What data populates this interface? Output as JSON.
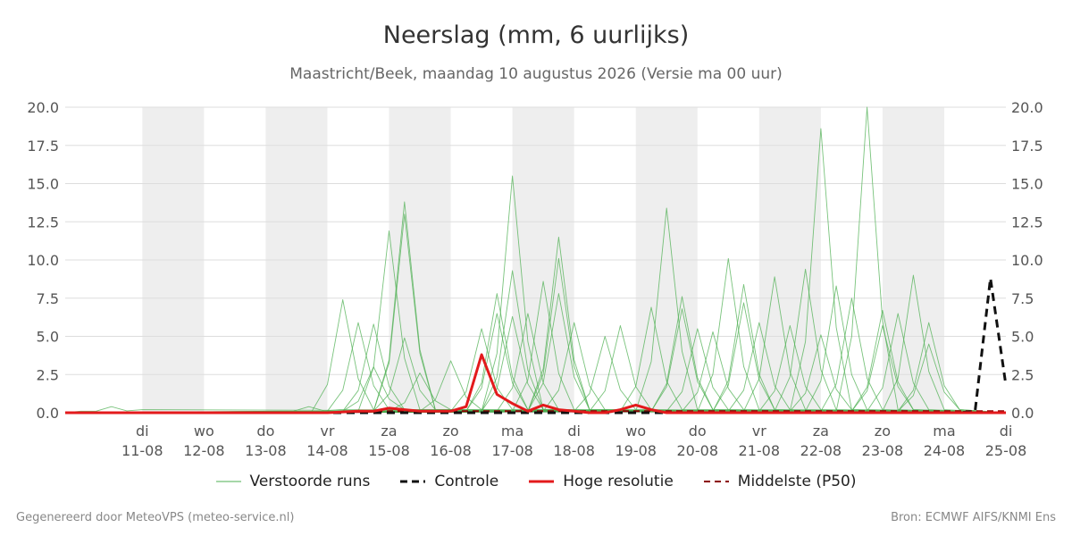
{
  "header": {
    "title": "Neerslag (mm, 6 uurlijks)",
    "subtitle": "Maastricht/Beek, maandag 10 augustus 2026 (Versie ma 00 uur)"
  },
  "footer": {
    "left": "Gegenereerd door MeteoVPS (meteo-service.nl)",
    "right": "Bron: ECMWF AIFS/KNMI Ens"
  },
  "chart_data": {
    "type": "line",
    "title": "Neerslag (mm, 6 uurlijks)",
    "subtitle": "Maastricht/Beek, maandag 10 augustus 2026 (Versie ma 00 uur)",
    "xlabel": "",
    "ylabel": "",
    "ylim": [
      0,
      20
    ],
    "xlim": [
      -0.25,
      15.0
    ],
    "x_unit": "days since 10-08-2026 00 uur",
    "yticks": [
      "0.0",
      "2.5",
      "5.0",
      "7.5",
      "10.0",
      "12.5",
      "15.0",
      "17.5",
      "20.0"
    ],
    "yticks_both_sides": true,
    "grid": true,
    "legend_placement": "bottom",
    "x_ticks": [
      {
        "day": "di",
        "date": "11-08"
      },
      {
        "day": "wo",
        "date": "12-08"
      },
      {
        "day": "do",
        "date": "13-08"
      },
      {
        "day": "vr",
        "date": "14-08"
      },
      {
        "day": "za",
        "date": "15-08"
      },
      {
        "day": "zo",
        "date": "16-08"
      },
      {
        "day": "ma",
        "date": "17-08"
      },
      {
        "day": "di",
        "date": "18-08"
      },
      {
        "day": "wo",
        "date": "19-08"
      },
      {
        "day": "do",
        "date": "20-08"
      },
      {
        "day": "vr",
        "date": "21-08"
      },
      {
        "day": "za",
        "date": "22-08"
      },
      {
        "day": "zo",
        "date": "23-08"
      },
      {
        "day": "ma",
        "date": "24-08"
      },
      {
        "day": "di",
        "date": "25-08"
      }
    ],
    "shaded_days": [
      [
        1,
        2
      ],
      [
        3,
        4
      ],
      [
        5,
        6
      ],
      [
        7,
        8
      ],
      [
        9,
        10
      ],
      [
        11,
        12
      ],
      [
        13,
        14
      ]
    ],
    "legend": {
      "members": "Verstoorde runs",
      "control": "Controle",
      "hires": "Hoge resolutie",
      "median": "Middelste (P50)"
    },
    "colors": {
      "members": "#4caf50",
      "control": "#111111",
      "hires": "#e31a1c",
      "median": "#8b0000",
      "shade": "#eeeeee",
      "grid": "#dddddd"
    },
    "series": [
      {
        "name": "Hoge resolutie",
        "style": "red-solid",
        "points": [
          [
            -0.25,
            0
          ],
          [
            0,
            0
          ],
          [
            1,
            0
          ],
          [
            2,
            0
          ],
          [
            3,
            0
          ],
          [
            4,
            0
          ],
          [
            4.5,
            0.1
          ],
          [
            4.75,
            0.1
          ],
          [
            5,
            0.3
          ],
          [
            5.25,
            0.2
          ],
          [
            5.5,
            0.1
          ],
          [
            5.75,
            0.1
          ],
          [
            6,
            0.1
          ],
          [
            6.25,
            0.4
          ],
          [
            6.5,
            3.8
          ],
          [
            6.75,
            1.2
          ],
          [
            7,
            0.6
          ],
          [
            7.25,
            0.1
          ],
          [
            7.5,
            0.5
          ],
          [
            7.75,
            0.2
          ],
          [
            8,
            0.1
          ],
          [
            8.25,
            0
          ],
          [
            8.5,
            0
          ],
          [
            8.75,
            0.2
          ],
          [
            9,
            0.5
          ],
          [
            9.25,
            0.2
          ],
          [
            9.5,
            0
          ],
          [
            10,
            0
          ],
          [
            11,
            0
          ],
          [
            12,
            0
          ],
          [
            13,
            0
          ],
          [
            14,
            0
          ],
          [
            15,
            0
          ]
        ]
      },
      {
        "name": "Controle",
        "style": "black-dashed",
        "points": [
          [
            -0.25,
            0
          ],
          [
            1,
            0
          ],
          [
            2,
            0
          ],
          [
            3,
            0
          ],
          [
            4,
            0
          ],
          [
            5,
            0
          ],
          [
            6,
            0
          ],
          [
            7,
            0
          ],
          [
            8,
            0
          ],
          [
            9,
            0
          ],
          [
            10,
            0
          ],
          [
            11,
            0
          ],
          [
            12,
            0
          ],
          [
            13,
            0
          ],
          [
            14,
            0
          ],
          [
            14.25,
            0
          ],
          [
            14.5,
            0.1
          ],
          [
            14.75,
            8.8
          ],
          [
            15,
            1.8
          ]
        ]
      },
      {
        "name": "Middelste (P50)",
        "style": "darkred-dashed",
        "points": [
          [
            -0.25,
            0
          ],
          [
            1,
            0
          ],
          [
            2,
            0
          ],
          [
            3,
            0
          ],
          [
            4,
            0
          ],
          [
            5,
            0.1
          ],
          [
            6,
            0.1
          ],
          [
            7,
            0.1
          ],
          [
            8,
            0.1
          ],
          [
            9,
            0.1
          ],
          [
            10,
            0.1
          ],
          [
            11,
            0.1
          ],
          [
            12,
            0.1
          ],
          [
            13,
            0.1
          ],
          [
            14,
            0.1
          ],
          [
            15,
            0.1
          ]
        ]
      }
    ],
    "member_peaks": [
      [
        0.5,
        0.4
      ],
      [
        3.7,
        0.4
      ],
      [
        4.25,
        7.4
      ],
      [
        4.5,
        5.9
      ],
      [
        4.75,
        5.8
      ],
      [
        4.75,
        3.0
      ],
      [
        5,
        11.9
      ],
      [
        5.25,
        13.8
      ],
      [
        5.25,
        13.0
      ],
      [
        5.25,
        4.9
      ],
      [
        5.5,
        2.6
      ],
      [
        6,
        3.4
      ],
      [
        6.5,
        5.5
      ],
      [
        6.75,
        7.8
      ],
      [
        6.75,
        6.5
      ],
      [
        7,
        15.5
      ],
      [
        7,
        9.3
      ],
      [
        7,
        6.3
      ],
      [
        7.25,
        6.5
      ],
      [
        7.5,
        8.6
      ],
      [
        7.75,
        11.5
      ],
      [
        7.75,
        10.1
      ],
      [
        7.75,
        7.8
      ],
      [
        8,
        5.9
      ],
      [
        8.5,
        5.0
      ],
      [
        8.75,
        5.7
      ],
      [
        9.25,
        6.9
      ],
      [
        9.5,
        13.4
      ],
      [
        9.75,
        7.6
      ],
      [
        9.75,
        6.8
      ],
      [
        10,
        5.5
      ],
      [
        10.25,
        5.3
      ],
      [
        10.5,
        10.1
      ],
      [
        10.75,
        8.4
      ],
      [
        10.75,
        7.2
      ],
      [
        11,
        5.9
      ],
      [
        11.25,
        8.9
      ],
      [
        11.5,
        5.7
      ],
      [
        11.75,
        9.4
      ],
      [
        12,
        18.6
      ],
      [
        12,
        5.1
      ],
      [
        12.25,
        8.3
      ],
      [
        12.5,
        7.5
      ],
      [
        12.75,
        20.0
      ],
      [
        13,
        6.7
      ],
      [
        13,
        5.7
      ],
      [
        13.25,
        6.5
      ],
      [
        13.5,
        9.0
      ],
      [
        13.75,
        5.9
      ],
      [
        13.75,
        4.5
      ]
    ]
  }
}
